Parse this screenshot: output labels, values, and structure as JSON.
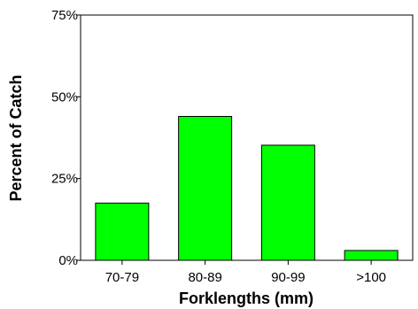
{
  "chart_data": {
    "type": "bar",
    "title": "",
    "xlabel": "Forklengths (mm)",
    "ylabel": "Percent of Catch",
    "categories": [
      "70-79",
      "80-89",
      "90-99",
      ">100"
    ],
    "values": [
      17.5,
      44,
      35.2,
      3
    ],
    "ylim": [
      0,
      75
    ],
    "yticks": [
      0,
      25,
      50,
      75
    ],
    "ytick_labels": [
      "0%",
      "25%",
      "50%",
      "75%"
    ],
    "bar_color": "#00ff00",
    "grid": false,
    "legend": "none"
  }
}
